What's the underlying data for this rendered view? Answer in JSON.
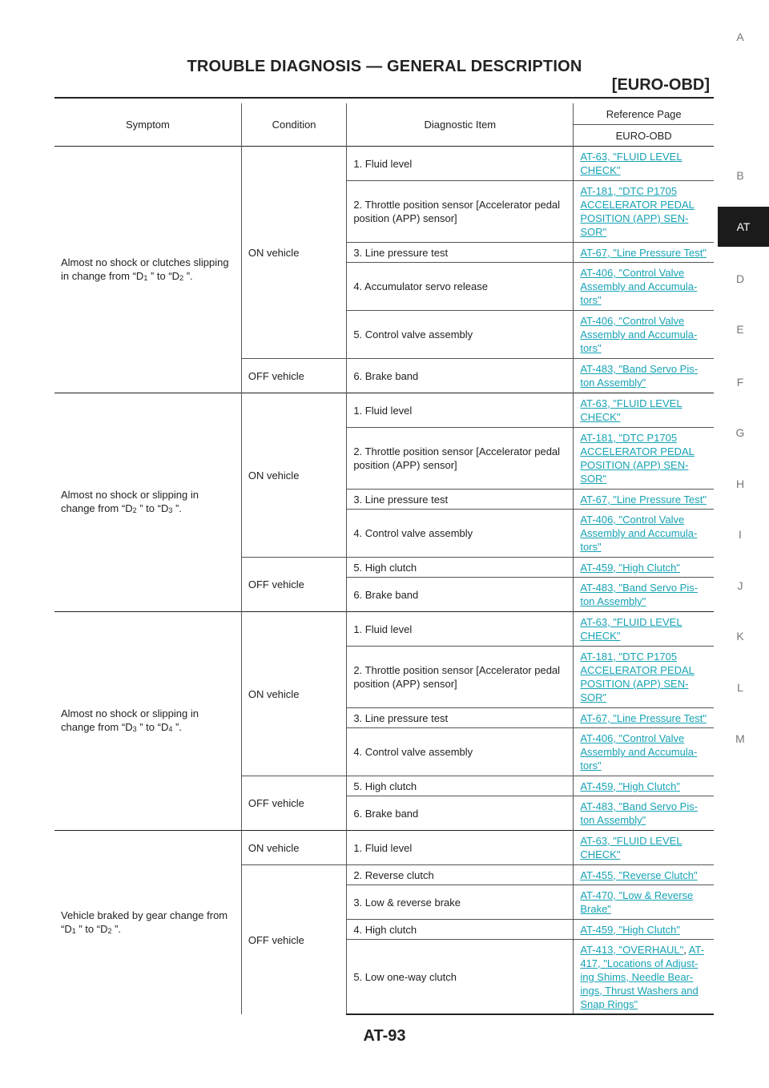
{
  "header": {
    "title": "TROUBLE DIAGNOSIS — GENERAL DESCRIPTION",
    "subtitle": "[EURO-OBD]"
  },
  "side_tabs": [
    "A",
    "B",
    "AT",
    "D",
    "E",
    "F",
    "G",
    "H",
    "I",
    "J",
    "K",
    "L",
    "M"
  ],
  "active_tab": "AT",
  "table": {
    "col_symptom": "Symptom",
    "col_condition": "Condition",
    "col_diag": "Diagnostic Item",
    "col_ref": "Reference Page",
    "col_ref_sub": "EURO-OBD",
    "g1": {
      "symptom_a": "Almost no shock or clutches slipping",
      "symptom_b": "in change from “D",
      "s1": "1",
      "mid": " ” to “D",
      "s2": "2",
      "end": " ”.",
      "cond_on": "ON vehicle",
      "cond_off": "OFF vehicle",
      "r1_diag": "1. Fluid level",
      "r1_ref": "AT-63, \"FLUID LEVEL CHECK\"",
      "r2_diag": "2. Throttle position sensor [Accelerator pedal position (APP) sensor]",
      "r2_ref": "AT-181, \"DTC P1705 ACCELERATOR PEDAL POSITION (APP) SEN-SOR\"",
      "r3_diag": "3. Line pressure test",
      "r3_ref": "AT-67, \"Line Pressure Test\"",
      "r4_diag": "4. Accumulator servo release",
      "r4_ref": "AT-406, \"Control Valve Assembly and Accumula-tors\"",
      "r5_diag": "5. Control valve assembly",
      "r5_ref": "AT-406, \"Control Valve Assembly and Accumula-tors\"",
      "r6_diag": "6. Brake band",
      "r6_ref": "AT-483, \"Band Servo Pis-ton Assembly\""
    },
    "g2": {
      "symptom_a": "Almost no shock or slipping in",
      "symptom_b": "change from “D",
      "s1": "2",
      "mid": " ” to “D",
      "s2": "3",
      "end": " ”.",
      "cond_on": "ON vehicle",
      "cond_off": "OFF vehicle",
      "r1_diag": "1. Fluid level",
      "r1_ref": "AT-63, \"FLUID LEVEL CHECK\"",
      "r2_diag": "2. Throttle position sensor [Accelerator pedal position (APP) sensor]",
      "r2_ref": "AT-181, \"DTC P1705 ACCELERATOR PEDAL POSITION (APP) SEN-SOR\"",
      "r3_diag": "3. Line pressure test",
      "r3_ref": "AT-67, \"Line Pressure Test\"",
      "r4_diag": "4. Control valve assembly",
      "r4_ref": "AT-406, \"Control Valve Assembly and Accumula-tors\"",
      "r5_diag": "5. High clutch",
      "r5_ref": "AT-459, \"High Clutch\"",
      "r6_diag": "6. Brake band",
      "r6_ref": "AT-483, \"Band Servo Pis-ton Assembly\""
    },
    "g3": {
      "symptom_a": "Almost no shock or slipping in",
      "symptom_b": "change from “D",
      "s1": "3",
      "mid": " ” to “D",
      "s2": "4",
      "end": " ”.",
      "cond_on": "ON vehicle",
      "cond_off": "OFF vehicle",
      "r1_diag": "1. Fluid level",
      "r1_ref": "AT-63, \"FLUID LEVEL CHECK\"",
      "r2_diag": "2. Throttle position sensor [Accelerator pedal position (APP) sensor]",
      "r2_ref": "AT-181, \"DTC P1705 ACCELERATOR PEDAL POSITION (APP) SEN-SOR\"",
      "r3_diag": "3. Line pressure test",
      "r3_ref": "AT-67, \"Line Pressure Test\"",
      "r4_diag": "4. Control valve assembly",
      "r4_ref": "AT-406, \"Control Valve Assembly and Accumula-tors\"",
      "r5_diag": "5. High clutch",
      "r5_ref": "AT-459, \"High Clutch\"",
      "r6_diag": "6. Brake band",
      "r6_ref": "AT-483, \"Band Servo Pis-ton Assembly\""
    },
    "g4": {
      "symptom_a": "Vehicle braked by gear change from",
      "symptom_b": "“D",
      "s1": "1",
      "mid": " ” to “D",
      "s2": "2",
      "end": " ”.",
      "cond_on": "ON vehicle",
      "cond_off": "OFF vehicle",
      "r1_diag": "1. Fluid level",
      "r1_ref": "AT-63, \"FLUID LEVEL CHECK\"",
      "r2_diag": "2. Reverse clutch",
      "r2_ref": "AT-455, \"Reverse Clutch\"",
      "r3_diag": "3. Low & reverse brake",
      "r3_ref": "AT-470, \"Low & Reverse Brake\"",
      "r4_diag": "4. High clutch",
      "r4_ref": "AT-459, \"High Clutch\"",
      "r5_diag": "5. Low one-way clutch",
      "r5_ref_a": "AT-413, \"OVERHAUL\"",
      "r5_sep": ", ",
      "r5_ref_b": "AT-417, \"Locations of Adjust-ing Shims, Needle Bear-ings, Thrust Washers and Snap Rings\""
    }
  },
  "footer": {
    "page": "AT-93"
  }
}
